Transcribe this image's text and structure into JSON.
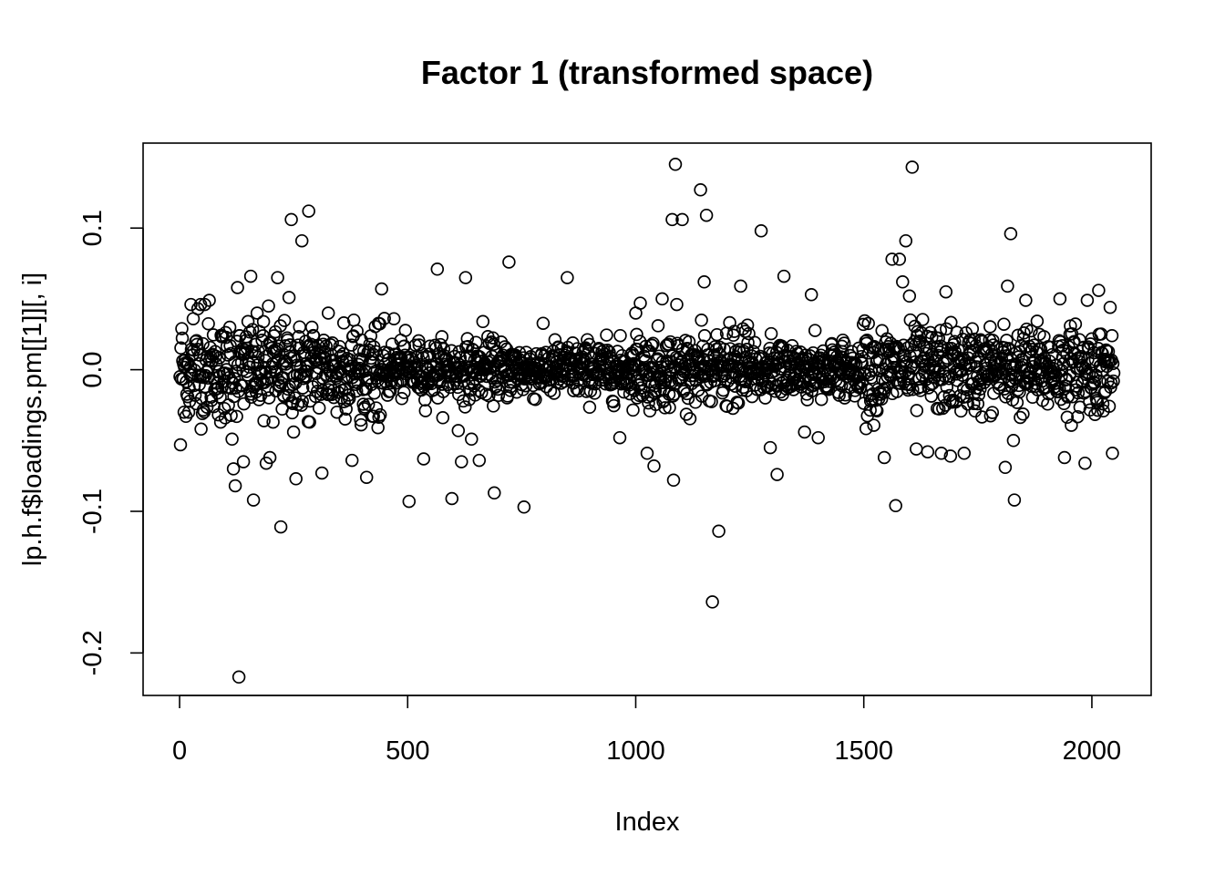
{
  "chart_data": {
    "type": "scatter",
    "title": "Factor 1 (transformed space)",
    "xlabel": "Index",
    "ylabel": "lp.h.f$loadings.pm[[1]][, i]",
    "xlim": [
      -80,
      2130
    ],
    "ylim": [
      -0.23,
      0.16
    ],
    "x_ticks": [
      0,
      500,
      1000,
      1500,
      2000
    ],
    "x_tick_labels": [
      "0",
      "500",
      "1000",
      "1500",
      "2000"
    ],
    "y_ticks": [
      -0.2,
      -0.1,
      0.0,
      0.1
    ],
    "y_tick_labels": [
      "-0.2",
      "-0.1",
      "0.0",
      "0.1"
    ],
    "grid": false,
    "marker": "open-circle",
    "n_points": 2048,
    "outliers": [
      {
        "x": 2,
        "y": -0.053
      },
      {
        "x": 5,
        "y": 0.029
      },
      {
        "x": 10,
        "y": -0.03
      },
      {
        "x": 20,
        "y": -0.03
      },
      {
        "x": 25,
        "y": 0.046
      },
      {
        "x": 30,
        "y": 0.036
      },
      {
        "x": 36,
        "y": -0.024
      },
      {
        "x": 40,
        "y": 0.043
      },
      {
        "x": 46,
        "y": 0.046
      },
      {
        "x": 50,
        "y": -0.031
      },
      {
        "x": 55,
        "y": 0.046
      },
      {
        "x": 65,
        "y": 0.049
      },
      {
        "x": 90,
        "y": -0.037
      },
      {
        "x": 100,
        "y": -0.034
      },
      {
        "x": 110,
        "y": 0.03
      },
      {
        "x": 115,
        "y": -0.049
      },
      {
        "x": 118,
        "y": -0.07
      },
      {
        "x": 122,
        "y": -0.082
      },
      {
        "x": 127,
        "y": 0.058
      },
      {
        "x": 130,
        "y": -0.217
      },
      {
        "x": 140,
        "y": -0.065
      },
      {
        "x": 150,
        "y": 0.034
      },
      {
        "x": 156,
        "y": 0.066
      },
      {
        "x": 162,
        "y": -0.092
      },
      {
        "x": 175,
        "y": 0.027
      },
      {
        "x": 185,
        "y": -0.036
      },
      {
        "x": 190,
        "y": -0.066
      },
      {
        "x": 195,
        "y": 0.045
      },
      {
        "x": 198,
        "y": -0.062
      },
      {
        "x": 205,
        "y": -0.037
      },
      {
        "x": 215,
        "y": 0.065
      },
      {
        "x": 222,
        "y": -0.111
      },
      {
        "x": 240,
        "y": 0.051
      },
      {
        "x": 245,
        "y": 0.106
      },
      {
        "x": 250,
        "y": -0.044
      },
      {
        "x": 255,
        "y": -0.077
      },
      {
        "x": 268,
        "y": 0.091
      },
      {
        "x": 283,
        "y": 0.112
      },
      {
        "x": 285,
        "y": -0.037
      },
      {
        "x": 290,
        "y": 0.03
      },
      {
        "x": 312,
        "y": -0.073
      },
      {
        "x": 326,
        "y": 0.04
      },
      {
        "x": 345,
        "y": -0.03
      },
      {
        "x": 360,
        "y": 0.033
      },
      {
        "x": 378,
        "y": -0.064
      },
      {
        "x": 382,
        "y": 0.035
      },
      {
        "x": 410,
        "y": -0.076
      },
      {
        "x": 443,
        "y": 0.057
      },
      {
        "x": 470,
        "y": 0.036
      },
      {
        "x": 503,
        "y": -0.093
      },
      {
        "x": 535,
        "y": -0.063
      },
      {
        "x": 565,
        "y": 0.071
      },
      {
        "x": 597,
        "y": -0.091
      },
      {
        "x": 611,
        "y": -0.043
      },
      {
        "x": 618,
        "y": -0.065
      },
      {
        "x": 627,
        "y": 0.065
      },
      {
        "x": 640,
        "y": -0.049
      },
      {
        "x": 657,
        "y": -0.064
      },
      {
        "x": 665,
        "y": 0.034
      },
      {
        "x": 690,
        "y": -0.087
      },
      {
        "x": 722,
        "y": 0.076
      },
      {
        "x": 755,
        "y": -0.097
      },
      {
        "x": 850,
        "y": 0.065
      },
      {
        "x": 965,
        "y": -0.048
      },
      {
        "x": 1000,
        "y": 0.04
      },
      {
        "x": 1010,
        "y": 0.047
      },
      {
        "x": 1025,
        "y": -0.059
      },
      {
        "x": 1040,
        "y": -0.068
      },
      {
        "x": 1058,
        "y": 0.05
      },
      {
        "x": 1080,
        "y": 0.106
      },
      {
        "x": 1083,
        "y": -0.078
      },
      {
        "x": 1087,
        "y": 0.145
      },
      {
        "x": 1090,
        "y": 0.046
      },
      {
        "x": 1102,
        "y": 0.106
      },
      {
        "x": 1142,
        "y": 0.127
      },
      {
        "x": 1150,
        "y": 0.062
      },
      {
        "x": 1155,
        "y": 0.109
      },
      {
        "x": 1168,
        "y": -0.164
      },
      {
        "x": 1182,
        "y": -0.114
      },
      {
        "x": 1230,
        "y": 0.059
      },
      {
        "x": 1275,
        "y": 0.098
      },
      {
        "x": 1295,
        "y": -0.055
      },
      {
        "x": 1310,
        "y": -0.074
      },
      {
        "x": 1325,
        "y": 0.066
      },
      {
        "x": 1370,
        "y": -0.044
      },
      {
        "x": 1385,
        "y": 0.053
      },
      {
        "x": 1400,
        "y": -0.048
      },
      {
        "x": 1545,
        "y": -0.062
      },
      {
        "x": 1562,
        "y": 0.078
      },
      {
        "x": 1570,
        "y": -0.096
      },
      {
        "x": 1578,
        "y": 0.078
      },
      {
        "x": 1585,
        "y": 0.062
      },
      {
        "x": 1592,
        "y": 0.091
      },
      {
        "x": 1600,
        "y": 0.052
      },
      {
        "x": 1606,
        "y": 0.143
      },
      {
        "x": 1615,
        "y": -0.056
      },
      {
        "x": 1640,
        "y": -0.058
      },
      {
        "x": 1670,
        "y": -0.059
      },
      {
        "x": 1680,
        "y": 0.055
      },
      {
        "x": 1690,
        "y": -0.061
      },
      {
        "x": 1720,
        "y": -0.059
      },
      {
        "x": 1810,
        "y": -0.069
      },
      {
        "x": 1815,
        "y": 0.059
      },
      {
        "x": 1822,
        "y": 0.096
      },
      {
        "x": 1828,
        "y": -0.05
      },
      {
        "x": 1830,
        "y": -0.092
      },
      {
        "x": 1855,
        "y": 0.049
      },
      {
        "x": 1930,
        "y": 0.05
      },
      {
        "x": 1940,
        "y": -0.062
      },
      {
        "x": 1985,
        "y": -0.066
      },
      {
        "x": 1990,
        "y": 0.049
      },
      {
        "x": 2015,
        "y": 0.056
      },
      {
        "x": 2040,
        "y": 0.044
      },
      {
        "x": 2045,
        "y": -0.059
      }
    ]
  }
}
